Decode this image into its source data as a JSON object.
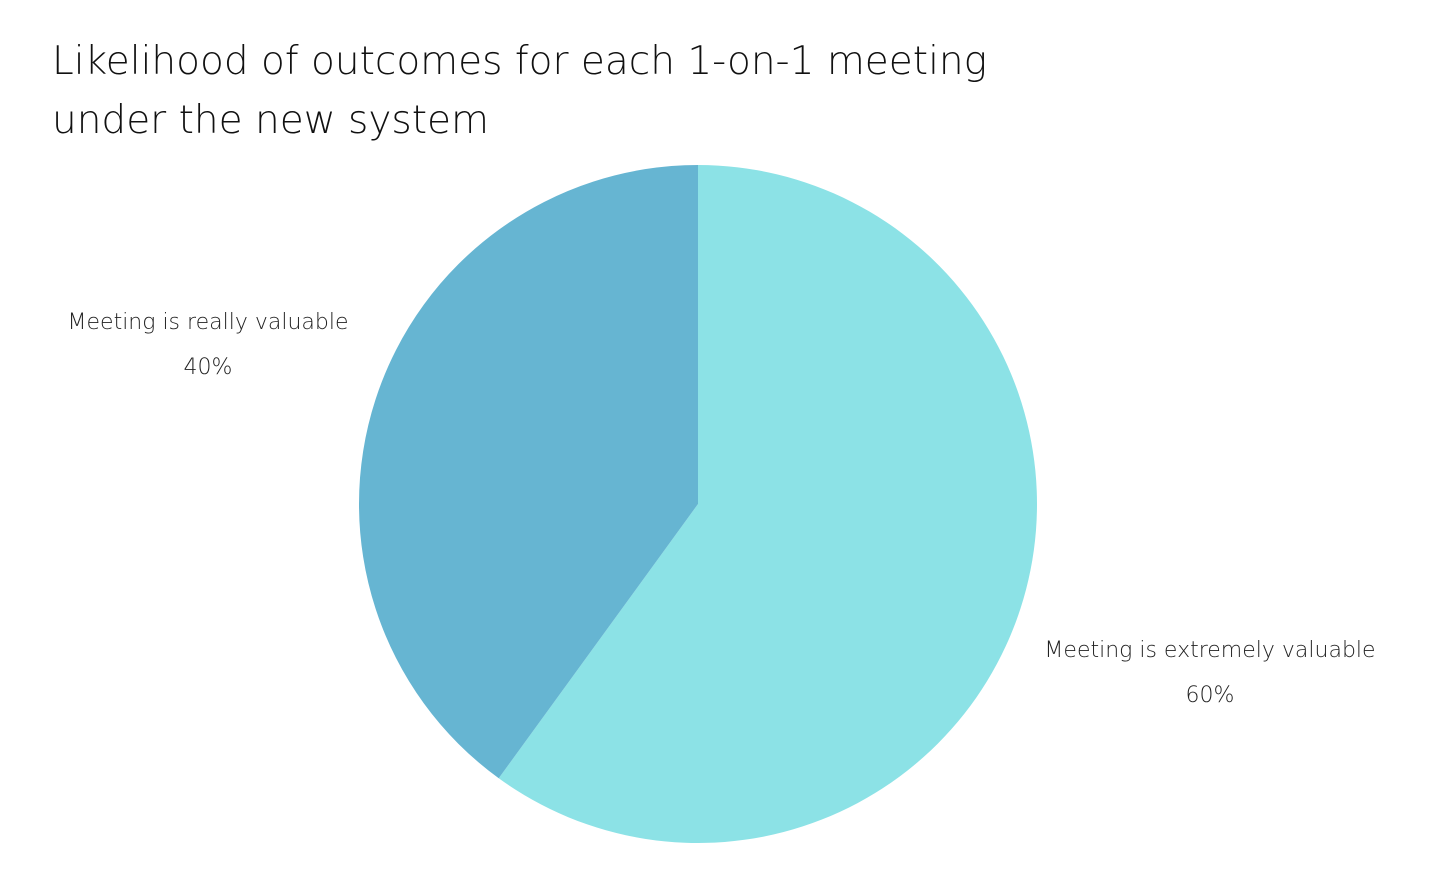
{
  "chart_data": {
    "type": "pie",
    "title": [
      "Likelihood of outcomes for each 1-on-1 meeting",
      "under the new system"
    ],
    "categories": [
      "Meeting is extremely valuable",
      "Meeting is really valuable"
    ],
    "values": [
      60,
      40
    ],
    "value_labels": [
      "60%",
      "40%"
    ],
    "colors": [
      "#8ce2e6",
      "#66b5d2"
    ]
  }
}
